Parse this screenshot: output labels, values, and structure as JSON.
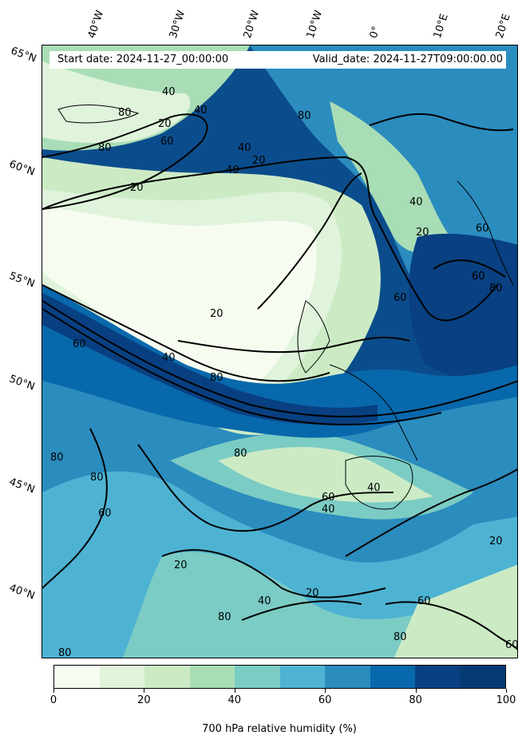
{
  "info": {
    "start_date": "Start date: 2024-11-27_00:00:00",
    "valid_date": "Valid_date: 2024-11-27T09:00:00.00"
  },
  "lat_labels": [
    "65°N",
    "60°N",
    "55°N",
    "50°N",
    "45°N",
    "40°N"
  ],
  "lon_labels": [
    "40°W",
    "30°W",
    "20°W",
    "10°W",
    "0°",
    "10°E",
    "20°E"
  ],
  "colorbar": {
    "title": "700 hPa relative humidity (%)",
    "ticks": [
      "0",
      "20",
      "40",
      "60",
      "80",
      "100"
    ],
    "colors": [
      "#f7fcf0",
      "#e0f3db",
      "#ccebc5",
      "#a8ddb5",
      "#7bccc4",
      "#4eb3d3",
      "#2b8cbe",
      "#0868ac",
      "#084081",
      "#063a75"
    ]
  },
  "contour_labels": [
    "40",
    "20",
    "40",
    "80",
    "60",
    "20",
    "40",
    "20",
    "80",
    "40",
    "20",
    "60",
    "80",
    "40",
    "60",
    "80",
    "20",
    "40",
    "80",
    "60",
    "60",
    "80",
    "80",
    "60",
    "40",
    "60",
    "80",
    "20",
    "40",
    "80",
    "60",
    "40",
    "20",
    "80",
    "20",
    "60",
    "80"
  ]
}
